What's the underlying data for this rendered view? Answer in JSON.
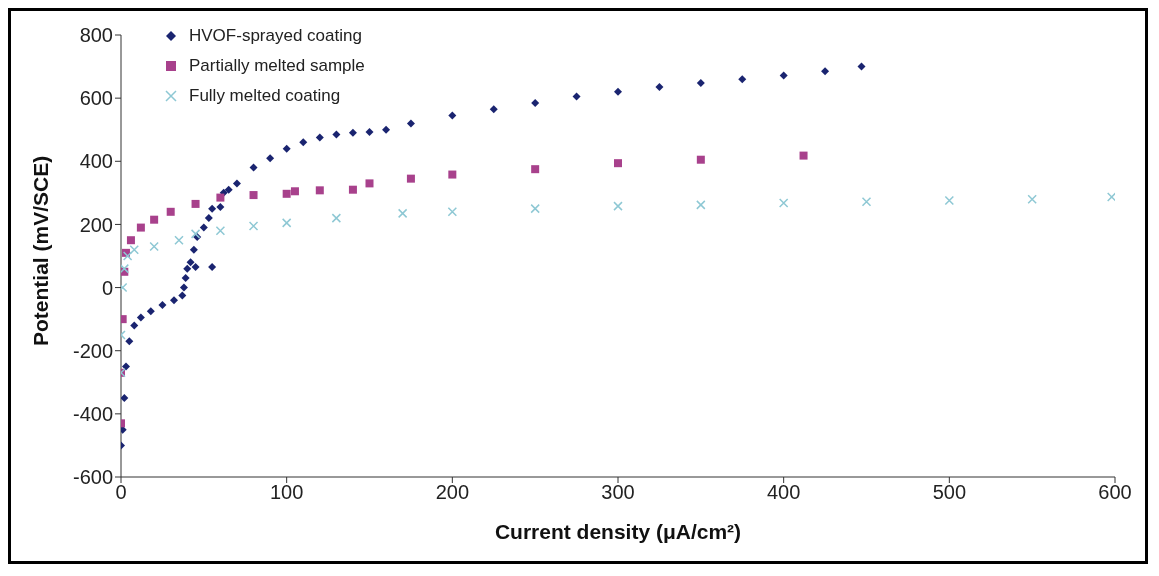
{
  "chart_data": {
    "type": "scatter",
    "xlabel": "Current density (μA/cm²)",
    "ylabel": "Potential (mV/SCE)",
    "xlim": [
      0,
      600
    ],
    "xticks": [
      0,
      100,
      200,
      300,
      400,
      500,
      600
    ],
    "ylim": [
      -600,
      800
    ],
    "yticks": [
      -600,
      -400,
      -200,
      0,
      200,
      400,
      600,
      800
    ],
    "grid": false,
    "legend": "top left",
    "series": [
      {
        "name": "HVOF-sprayed coating",
        "color": "#1a2470",
        "marker": "diamond",
        "x": [
          0,
          1,
          2,
          3,
          5,
          8,
          12,
          18,
          25,
          32,
          37,
          38,
          39,
          40,
          45,
          55,
          42,
          44,
          46,
          50,
          53,
          55,
          60,
          62,
          65,
          70,
          80,
          90,
          100,
          110,
          120,
          130,
          140,
          150,
          160,
          175,
          200,
          225,
          250,
          275,
          300,
          325,
          350,
          375,
          400,
          425,
          447
        ],
        "values": [
          -500,
          -450,
          -350,
          -250,
          -170,
          -120,
          -95,
          -75,
          -55,
          -40,
          -25,
          0,
          30,
          60,
          65,
          65,
          80,
          120,
          160,
          190,
          220,
          250,
          255,
          300,
          310,
          330,
          380,
          410,
          440,
          460,
          475,
          485,
          490,
          493,
          500,
          520,
          545,
          565,
          585,
          605,
          620,
          635,
          648,
          660,
          672,
          685,
          700
        ]
      },
      {
        "name": "Partially melted sample",
        "color": "#a8418c",
        "marker": "square",
        "x": [
          0,
          0,
          1,
          2,
          3,
          6,
          12,
          20,
          30,
          45,
          60,
          80,
          100,
          105,
          120,
          140,
          150,
          175,
          200,
          250,
          300,
          350,
          412
        ],
        "values": [
          -430,
          -270,
          -100,
          50,
          110,
          150,
          190,
          215,
          240,
          265,
          285,
          293,
          297,
          305,
          308,
          310,
          330,
          345,
          358,
          375,
          394,
          405,
          418
        ]
      },
      {
        "name": "Fully melted coating",
        "color": "#8ec8d4",
        "marker": "cross",
        "x": [
          0,
          0,
          1,
          2,
          4,
          8,
          20,
          35,
          45,
          60,
          80,
          100,
          130,
          170,
          200,
          250,
          300,
          350,
          400,
          450,
          500,
          550,
          598
        ],
        "values": [
          -270,
          -150,
          0,
          60,
          100,
          120,
          130,
          150,
          170,
          180,
          195,
          205,
          220,
          235,
          240,
          250,
          258,
          262,
          268,
          272,
          276,
          280,
          287
        ]
      }
    ]
  }
}
